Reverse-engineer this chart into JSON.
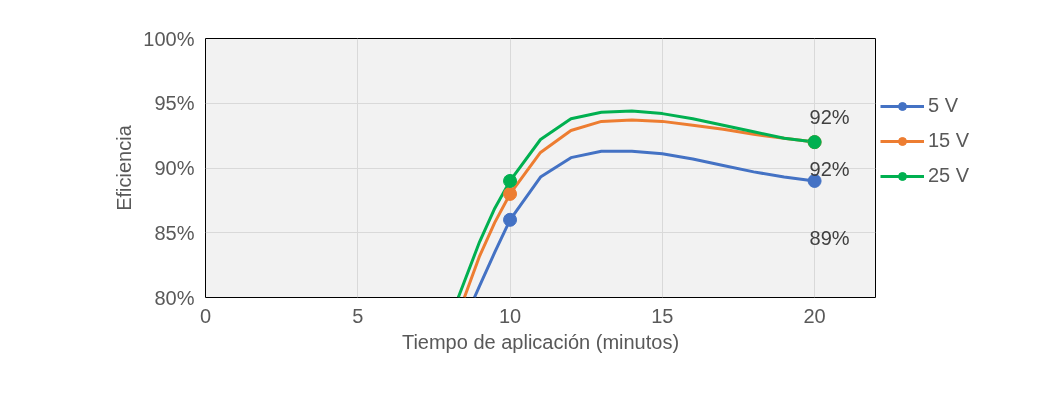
{
  "chart_data": {
    "type": "line",
    "xlabel": "Tiempo de aplicación (minutos)",
    "ylabel": "Eficiencia",
    "xlim": [
      0,
      22
    ],
    "xticks": [
      0,
      5,
      10,
      15,
      20
    ],
    "ylim": [
      80,
      100
    ],
    "yticks": [
      {
        "value": 80,
        "label": "80%"
      },
      {
        "value": 85,
        "label": "85%"
      },
      {
        "value": 90,
        "label": "90%"
      },
      {
        "value": 95,
        "label": "95%"
      },
      {
        "value": 100,
        "label": "100%"
      }
    ],
    "grid": true,
    "legend": "right",
    "marker": "none",
    "line_style": "solid",
    "series": [
      {
        "name": "5 V",
        "color": "#4472c4",
        "x": [
          8.83,
          9,
          9.5,
          10,
          11,
          12,
          13,
          14,
          15,
          16,
          17,
          18,
          19,
          20
        ],
        "values": [
          80,
          80.9,
          83.5,
          86,
          89.3,
          90.8,
          91.3,
          91.3,
          91.1,
          90.7,
          90.2,
          89.7,
          89.3,
          89
        ]
      },
      {
        "name": "15 V",
        "color": "#ed7d31",
        "x": [
          8.5,
          9,
          9.5,
          10,
          11,
          12,
          13,
          14,
          15,
          16,
          17,
          18,
          19,
          20
        ],
        "values": [
          80,
          83.2,
          85.8,
          88,
          91.2,
          92.9,
          93.6,
          93.7,
          93.6,
          93.3,
          93,
          92.6,
          92.3,
          92
        ]
      },
      {
        "name": "25 V",
        "color": "#00b050",
        "x": [
          8.3,
          9,
          9.5,
          10,
          11,
          12,
          13,
          14,
          15,
          16,
          17,
          18,
          19,
          20
        ],
        "values": [
          80,
          84.3,
          86.9,
          89,
          92.2,
          93.8,
          94.3,
          94.4,
          94.2,
          93.8,
          93.3,
          92.8,
          92.3,
          92
        ]
      },
      {
        "type": "scatter",
        "marker": "circle",
        "color": "#4472c4",
        "x": [
          10,
          20
        ],
        "values": [
          86,
          89
        ],
        "value_labels": [
          null,
          "89%"
        ]
      },
      {
        "type": "scatter",
        "marker": "circle",
        "color": "#ed7d31",
        "x": [
          10,
          20
        ],
        "values": [
          88,
          92
        ],
        "value_labels": [
          null,
          "92%"
        ]
      },
      {
        "type": "scatter",
        "marker": "circle",
        "color": "#00b050",
        "x": [
          10,
          20
        ],
        "values": [
          89,
          92
        ],
        "value_labels": [
          null,
          "92%"
        ]
      }
    ]
  }
}
